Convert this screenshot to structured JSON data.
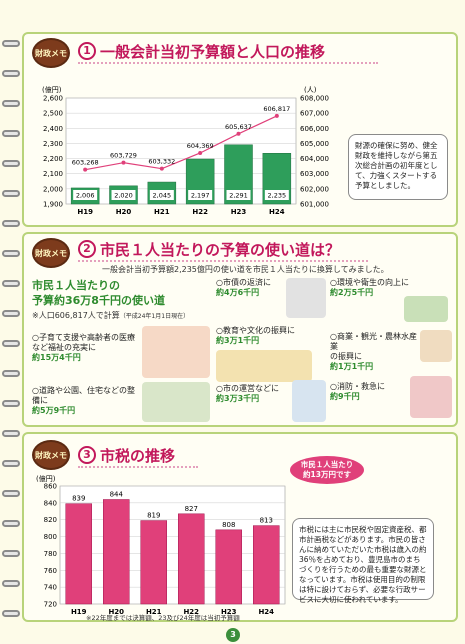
{
  "memo_label": "財政メモ",
  "page_number": "3",
  "section1": {
    "num": "1",
    "title": "一般会計当初予算額と人口の推移",
    "note": "財源の確保に努め、健全財政を維持しながら第五次総合計画の初年度として、力強くスタートする予算としました。"
  },
  "section2": {
    "num": "2",
    "title": "市民１人当たりの予算の使い道は？",
    "intro": "一般会計当初予算額2,235億円の使い道を市民１人当たりに換算してみました。",
    "headline1": "市民１人当たりの",
    "headline2": "予算約36万8千円の使い道",
    "population": "※人口606,817人で計算",
    "population_date": "（平成24年1月1日現在）",
    "items": [
      {
        "label": "○子育て支援や高齢者の医療など福祉の充実に",
        "amount": "約15万4千円"
      },
      {
        "label": "○道路や公園、住宅などの整備に",
        "amount": "約5万9千円"
      },
      {
        "label": "○市債の返済に",
        "amount": "約4万6千円"
      },
      {
        "label": "○教育や文化の振興に",
        "amount": "約3万1千円"
      },
      {
        "label": "○市の運営などに",
        "amount": "約3万3千円"
      },
      {
        "label": "○環境や衛生の向上に",
        "amount": "約2万5千円"
      },
      {
        "label": "○商業・観光・農林水産業",
        "label2": "の振興に",
        "amount": "約1万1千円"
      },
      {
        "label": "○消防・救急に",
        "amount": "約9千円"
      }
    ]
  },
  "section3": {
    "num": "3",
    "title": "市税の推移",
    "bubble1": "市民１人当たり",
    "bubble2": "約13万円です",
    "note": "市税には主に市民税や固定資産税、都市計画税などがあります。市民の皆さんに納めていただいた市税は歳入の約36％を占めており、豊児島市のまちづくりを行うための最も重要な財源となっています。市税は使用目的の制限は特に設けておらず、必要な行政サービスに大切に使われています。",
    "footnote": "※22年度までは決算額、23及び24年度は当初予算額"
  },
  "chart_data": [
    {
      "type": "bar",
      "title": "",
      "categories": [
        "H19",
        "H20",
        "H21",
        "H22",
        "H23",
        "H24"
      ],
      "ylabel": "(億円)",
      "ylim": [
        1900,
        2600
      ],
      "yticks": [
        "1,900",
        "2,000",
        "2,100",
        "2,200",
        "2,300",
        "2,400",
        "2,500",
        "2,600"
      ],
      "series": [
        {
          "name": "予算額",
          "values": [
            2006,
            2020,
            2045,
            2197,
            2291,
            2235
          ],
          "labels": [
            "2,006",
            "2,020",
            "2,045",
            "2,197",
            "2,291",
            "2,235"
          ]
        },
        {
          "name": "人口",
          "type": "line",
          "values": [
            603268,
            603729,
            603332,
            604369,
            605637,
            606817
          ],
          "labels": [
            "603,268",
            "603,729",
            "603,332",
            "604,369",
            "605,637",
            "606,817"
          ]
        }
      ],
      "y2label": "(人)",
      "y2lim": [
        601000,
        608000
      ],
      "y2ticks": [
        "601,000",
        "602,000",
        "603,000",
        "604,000",
        "605,000",
        "606,000",
        "607,000",
        "608,000"
      ],
      "colors": {
        "bar": "#2e9e5b",
        "line": "#e0407a"
      }
    },
    {
      "type": "bar",
      "title": "",
      "categories": [
        "H19",
        "H20",
        "H21",
        "H22",
        "H23",
        "H24"
      ],
      "ylabel": "(億円)",
      "ylim": [
        720,
        860
      ],
      "yticks": [
        "720",
        "740",
        "760",
        "780",
        "800",
        "820",
        "840",
        "860"
      ],
      "series": [
        {
          "name": "市税",
          "values": [
            839,
            844,
            819,
            827,
            808,
            813
          ]
        }
      ],
      "colors": {
        "bar": "#e0407a"
      }
    }
  ]
}
